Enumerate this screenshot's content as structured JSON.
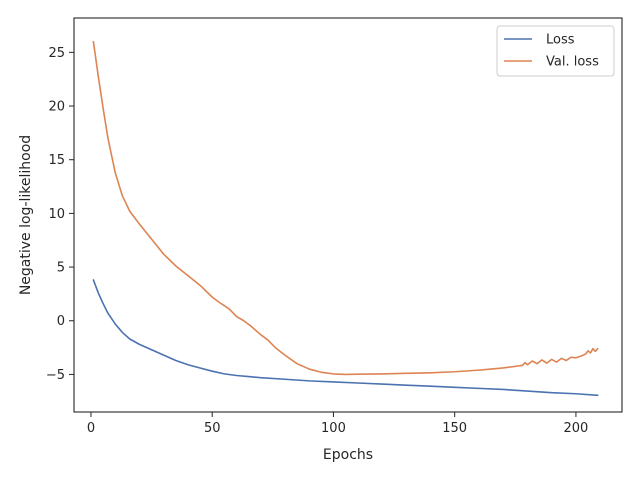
{
  "chart_data": {
    "type": "line",
    "title": "",
    "xlabel": "Epochs",
    "ylabel": "Negative log-likelihood",
    "xlim": [
      -7,
      219
    ],
    "ylim": [
      -8.5,
      28.2
    ],
    "xticks": [
      0,
      50,
      100,
      150,
      200
    ],
    "yticks": [
      -5,
      0,
      5,
      10,
      15,
      20,
      25
    ],
    "xtick_labels": [
      "0",
      "50",
      "100",
      "150",
      "200"
    ],
    "ytick_labels": [
      "−5",
      "0",
      "5",
      "10",
      "15",
      "20",
      "25"
    ],
    "grid": false,
    "legend_position": "upper-right",
    "series": [
      {
        "name": "Loss",
        "color": "#4c72b0",
        "x": [
          1,
          3,
          5,
          7,
          10,
          13,
          16,
          20,
          25,
          30,
          35,
          40,
          45,
          50,
          55,
          60,
          65,
          70,
          80,
          90,
          100,
          110,
          120,
          130,
          140,
          150,
          160,
          170,
          180,
          190,
          200,
          209
        ],
        "y": [
          3.8,
          2.6,
          1.6,
          0.7,
          -0.3,
          -1.1,
          -1.7,
          -2.2,
          -2.7,
          -3.2,
          -3.7,
          -4.1,
          -4.4,
          -4.7,
          -4.95,
          -5.1,
          -5.2,
          -5.3,
          -5.45,
          -5.6,
          -5.7,
          -5.8,
          -5.9,
          -6.0,
          -6.1,
          -6.2,
          -6.3,
          -6.4,
          -6.55,
          -6.7,
          -6.8,
          -6.95
        ]
      },
      {
        "name": "Val. loss",
        "color": "#dd8452",
        "x": [
          1,
          3,
          5,
          7,
          10,
          13,
          16,
          20,
          25,
          30,
          35,
          40,
          45,
          50,
          53,
          57,
          60,
          63,
          66,
          70,
          73,
          76,
          80,
          85,
          90,
          95,
          100,
          105,
          110,
          120,
          130,
          140,
          150,
          160,
          165,
          170,
          175,
          178,
          179,
          180,
          182,
          184,
          186,
          188,
          190,
          192,
          194,
          196,
          198,
          200,
          202,
          204,
          205,
          206,
          207,
          208,
          209
        ],
        "y": [
          26.0,
          22.8,
          19.8,
          17.0,
          13.8,
          11.6,
          10.2,
          9.0,
          7.6,
          6.2,
          5.1,
          4.2,
          3.3,
          2.2,
          1.7,
          1.1,
          0.4,
          0.0,
          -0.5,
          -1.3,
          -1.8,
          -2.5,
          -3.2,
          -4.0,
          -4.5,
          -4.8,
          -4.95,
          -5.0,
          -4.98,
          -4.95,
          -4.9,
          -4.85,
          -4.75,
          -4.6,
          -4.5,
          -4.4,
          -4.25,
          -4.15,
          -3.9,
          -4.1,
          -3.75,
          -4.0,
          -3.65,
          -3.95,
          -3.6,
          -3.85,
          -3.5,
          -3.7,
          -3.4,
          -3.45,
          -3.3,
          -3.1,
          -2.8,
          -3.0,
          -2.6,
          -2.85,
          -2.6
        ]
      }
    ]
  }
}
